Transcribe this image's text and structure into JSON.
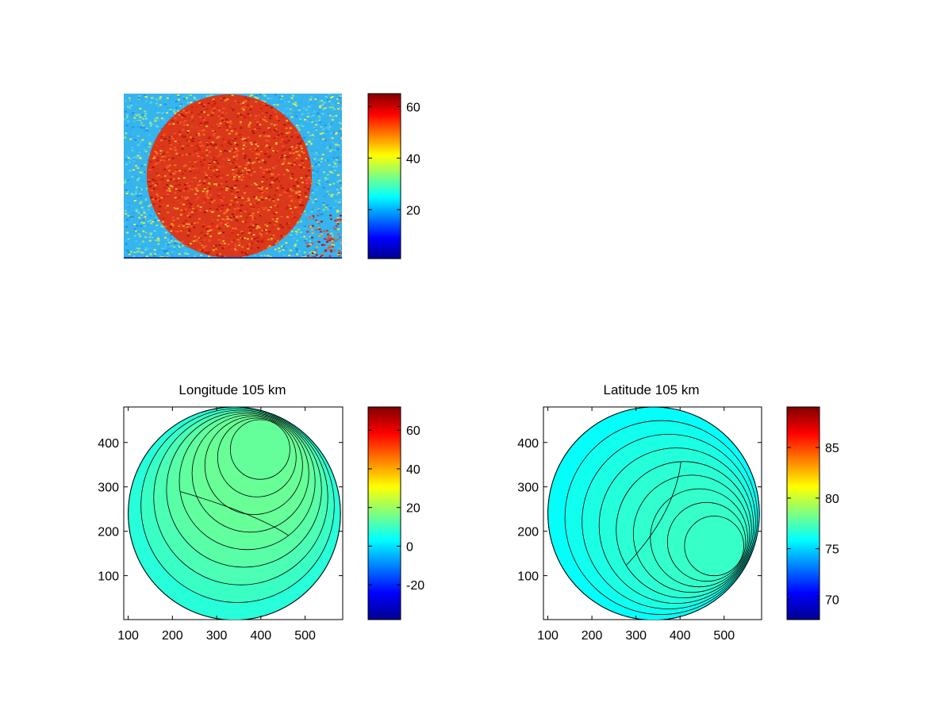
{
  "chart_data": [
    {
      "type": "heatmap",
      "title": "",
      "description_values": "noisy intensity image with bright disk",
      "colorbar": {
        "min": 1,
        "max": 65,
        "ticks": [
          20,
          40,
          60
        ]
      },
      "axes_visible": false
    },
    {
      "type": "heatmap",
      "title": "Longitude 105 km",
      "xlim": [
        90,
        585
      ],
      "ylim": [
        1,
        480
      ],
      "xticks": [
        100,
        200,
        300,
        400,
        500
      ],
      "yticks": [
        100,
        200,
        300,
        400
      ],
      "disk": {
        "cx": 340,
        "cy": 240,
        "r": 240
      },
      "colorbar": {
        "min": -38,
        "max": 72,
        "ticks": [
          -20,
          0,
          20,
          40,
          60
        ]
      },
      "contour_levels": [
        -30,
        -20,
        -10,
        0,
        10,
        20,
        30,
        40,
        50,
        60
      ],
      "field": {
        "axis_angle_deg": 68,
        "center_value": 14,
        "scale": 30
      }
    },
    {
      "type": "heatmap",
      "title": "Latitude 105 km",
      "xlim": [
        90,
        585
      ],
      "ylim": [
        1,
        480
      ],
      "xticks": [
        100,
        200,
        300,
        400,
        500
      ],
      "yticks": [
        100,
        200,
        300,
        400
      ],
      "disk": {
        "cx": 340,
        "cy": 240,
        "r": 240
      },
      "colorbar": {
        "min": 68,
        "max": 89,
        "ticks": [
          70,
          75,
          80,
          85
        ]
      },
      "contour_levels": [
        70,
        71,
        72,
        73,
        74,
        75,
        76,
        77,
        78,
        79,
        80,
        81,
        82
      ],
      "field": {
        "axis_angle_deg": -28,
        "center_value": 77,
        "scale": 4
      }
    }
  ]
}
